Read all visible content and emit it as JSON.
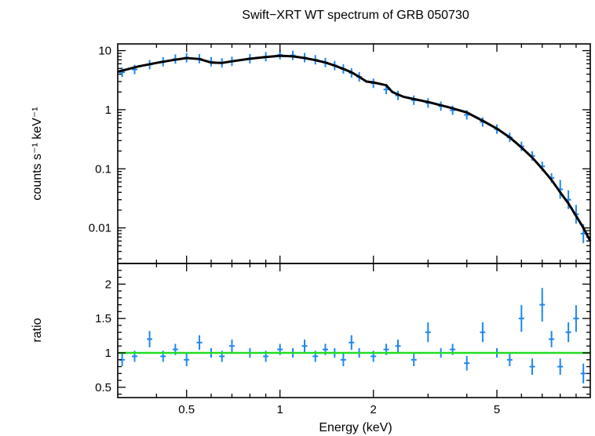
{
  "chart_data": [
    {
      "type": "scatter",
      "title": "Swift−XRT WT spectrum of GRB 050730",
      "xlabel": "Energy (keV)",
      "ylabel": "counts s⁻¹ keV⁻¹",
      "xscale": "log",
      "yscale": "log",
      "xlim": [
        0.3,
        10
      ],
      "ylim": [
        0.0025,
        13
      ],
      "x_ticks": [
        0.5,
        1,
        2,
        5
      ],
      "x_tick_labels": [
        "0.5",
        "1",
        "2",
        "5"
      ],
      "y_ticks": [
        10,
        1,
        0.1,
        0.01
      ],
      "y_tick_labels": [
        "10",
        "1",
        "0.1",
        "0.01"
      ],
      "grid": false,
      "series": [
        {
          "role": "data",
          "color": "#1e88f0",
          "x": [
            0.31,
            0.34,
            0.38,
            0.42,
            0.46,
            0.5,
            0.55,
            0.6,
            0.65,
            0.7,
            0.8,
            0.9,
            1.0,
            1.1,
            1.2,
            1.3,
            1.4,
            1.5,
            1.6,
            1.7,
            1.8,
            2.0,
            2.2,
            2.4,
            2.7,
            3.0,
            3.3,
            3.6,
            4.0,
            4.5,
            5.0,
            5.5,
            6.0,
            6.5,
            7.0,
            7.5,
            8.0,
            8.5,
            9.0,
            9.5
          ],
          "y": [
            4.3,
            4.8,
            5.8,
            6.5,
            7.2,
            7.6,
            7.3,
            6.5,
            6.2,
            6.6,
            7.3,
            7.9,
            8.5,
            8.3,
            7.6,
            7.0,
            6.3,
            5.6,
            4.9,
            4.2,
            3.6,
            2.8,
            2.2,
            1.75,
            1.45,
            1.3,
            1.15,
            0.98,
            0.82,
            0.62,
            0.47,
            0.34,
            0.24,
            0.165,
            0.11,
            0.07,
            0.045,
            0.03,
            0.017,
            0.008
          ]
        },
        {
          "role": "model",
          "color": "#000000",
          "x": [
            0.3,
            0.35,
            0.4,
            0.45,
            0.5,
            0.55,
            0.6,
            0.65,
            0.7,
            0.8,
            0.9,
            1.0,
            1.1,
            1.2,
            1.3,
            1.4,
            1.5,
            1.6,
            1.7,
            1.8,
            1.9,
            2.0,
            2.2,
            2.3,
            2.5,
            3.0,
            3.5,
            4.0,
            4.5,
            5.0,
            5.5,
            6.0,
            6.5,
            7.0,
            7.5,
            8.0,
            8.5,
            9.0,
            9.5,
            10.0
          ],
          "y": [
            4.4,
            5.4,
            6.2,
            6.9,
            7.5,
            7.2,
            6.3,
            6.2,
            6.6,
            7.3,
            7.8,
            8.2,
            8.0,
            7.5,
            6.9,
            6.3,
            5.6,
            4.9,
            4.3,
            3.6,
            3.0,
            2.9,
            2.6,
            2.0,
            1.65,
            1.35,
            1.1,
            0.9,
            0.65,
            0.48,
            0.34,
            0.23,
            0.155,
            0.1,
            0.065,
            0.04,
            0.026,
            0.016,
            0.01,
            0.006
          ]
        }
      ]
    },
    {
      "type": "scatter",
      "xlabel": "Energy (keV)",
      "ylabel": "ratio",
      "xscale": "log",
      "xlim": [
        0.3,
        10
      ],
      "ylim": [
        0.35,
        2.3
      ],
      "x_ticks": [
        0.5,
        1,
        2,
        5
      ],
      "x_tick_labels": [
        "0.5",
        "1",
        "2",
        "5"
      ],
      "y_ticks": [
        2,
        1.5,
        1,
        0.5
      ],
      "y_tick_labels": [
        "2",
        "1.5",
        "1",
        "0.5"
      ],
      "grid": false,
      "series": [
        {
          "role": "ratio",
          "color": "#1e88f0",
          "x": [
            0.31,
            0.34,
            0.38,
            0.42,
            0.46,
            0.5,
            0.55,
            0.6,
            0.65,
            0.7,
            0.8,
            0.9,
            1.0,
            1.1,
            1.2,
            1.3,
            1.4,
            1.5,
            1.6,
            1.7,
            1.8,
            2.0,
            2.2,
            2.4,
            2.7,
            3.0,
            3.3,
            3.6,
            4.0,
            4.5,
            5.0,
            5.5,
            6.0,
            6.5,
            7.0,
            7.5,
            8.0,
            8.5,
            9.0,
            9.5
          ],
          "y": [
            0.9,
            0.95,
            1.2,
            0.95,
            1.05,
            0.9,
            1.15,
            1.0,
            0.95,
            1.1,
            1.0,
            0.95,
            1.05,
            1.0,
            1.1,
            0.95,
            1.05,
            1.0,
            0.9,
            1.15,
            1.0,
            0.95,
            1.05,
            1.1,
            0.9,
            1.3,
            1.0,
            1.05,
            0.85,
            1.3,
            1.0,
            0.9,
            1.5,
            0.8,
            1.7,
            1.2,
            0.8,
            1.3,
            1.5,
            0.7
          ]
        },
        {
          "role": "unity-line",
          "color": "#22dd22",
          "x": [
            0.3,
            10
          ],
          "y": [
            1,
            1
          ]
        }
      ]
    }
  ]
}
